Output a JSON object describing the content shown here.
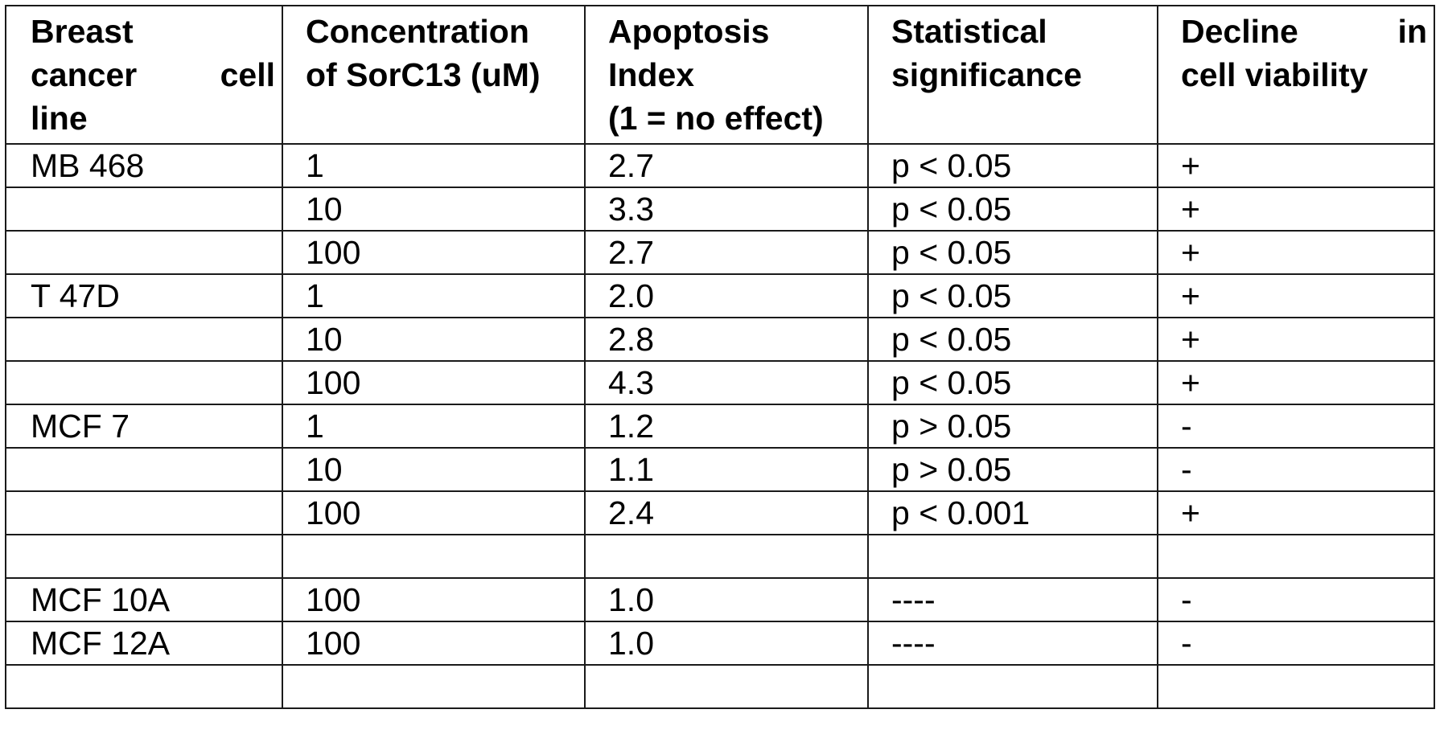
{
  "table": {
    "headers": {
      "cell_line": [
        "Breast",
        "cancer cell",
        "line"
      ],
      "concentration": [
        "Concentration",
        "of SorC13 (uM)"
      ],
      "apoptosis": [
        "Apoptosis",
        "Index",
        "(1 = no effect)"
      ],
      "significance": [
        "Statistical",
        "significance"
      ],
      "viability": [
        "Decline in",
        "cell viability"
      ]
    },
    "rows": [
      {
        "cell_line": "MB 468",
        "concentration": "1",
        "apoptosis": "2.7",
        "significance": "p < 0.05",
        "viability": "+"
      },
      {
        "cell_line": "",
        "concentration": "10",
        "apoptosis": "3.3",
        "significance": "p < 0.05",
        "viability": "+"
      },
      {
        "cell_line": "",
        "concentration": "100",
        "apoptosis": "2.7",
        "significance": "p < 0.05",
        "viability": "+"
      },
      {
        "cell_line": "T 47D",
        "concentration": "1",
        "apoptosis": "2.0",
        "significance": "p < 0.05",
        "viability": "+"
      },
      {
        "cell_line": "",
        "concentration": "10",
        "apoptosis": "2.8",
        "significance": "p < 0.05",
        "viability": "+"
      },
      {
        "cell_line": "",
        "concentration": "100",
        "apoptosis": "4.3",
        "significance": "p < 0.05",
        "viability": "+"
      },
      {
        "cell_line": "MCF 7",
        "concentration": "1",
        "apoptosis": "1.2",
        "significance": "p > 0.05",
        "viability": "-"
      },
      {
        "cell_line": "",
        "concentration": "10",
        "apoptosis": "1.1",
        "significance": "p > 0.05",
        "viability": "-"
      },
      {
        "cell_line": "",
        "concentration": "100",
        "apoptosis": "2.4",
        "significance": "p < 0.001",
        "viability": "+"
      },
      {
        "cell_line": "",
        "concentration": "",
        "apoptosis": "",
        "significance": "",
        "viability": ""
      },
      {
        "cell_line": "MCF 10A",
        "concentration": "100",
        "apoptosis": "1.0",
        "significance": "----",
        "viability": "-"
      },
      {
        "cell_line": "MCF 12A",
        "concentration": "100",
        "apoptosis": "1.0",
        "significance": "----",
        "viability": "-"
      },
      {
        "cell_line": "",
        "concentration": "",
        "apoptosis": "",
        "significance": "",
        "viability": ""
      }
    ]
  }
}
